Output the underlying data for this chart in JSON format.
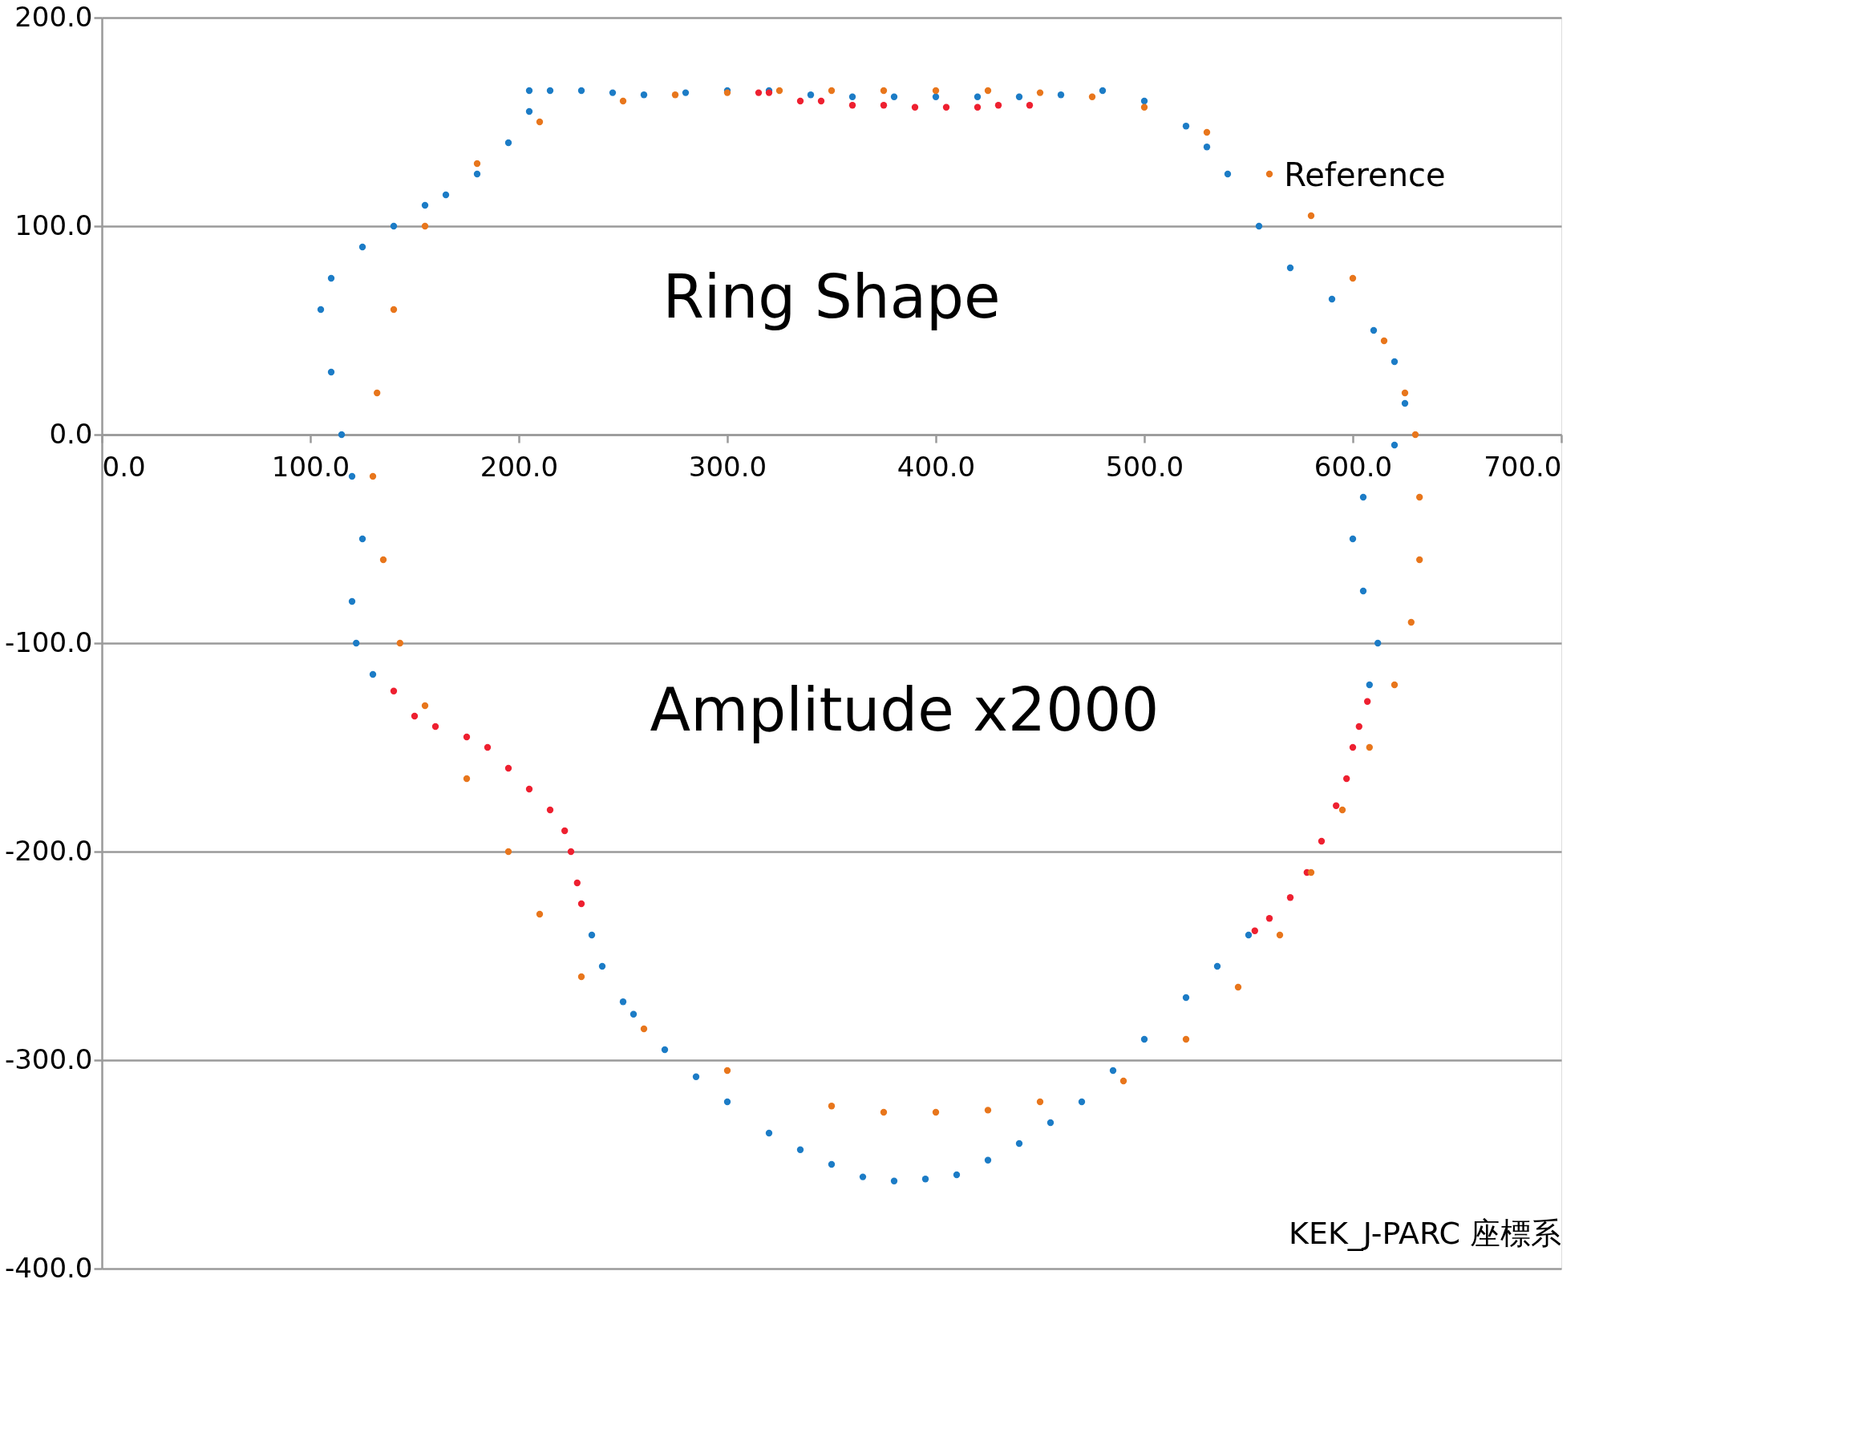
{
  "chart_data": {
    "type": "scatter",
    "series": [
      {
        "color": "#1c7cc6",
        "x": [
          205,
          215,
          230,
          245,
          260,
          280,
          300,
          320,
          340,
          360,
          380,
          400,
          420,
          440,
          460,
          480,
          500,
          520,
          530,
          540,
          555,
          570,
          590,
          610,
          620,
          625,
          620,
          605,
          600,
          605,
          612,
          608,
          550,
          535,
          520,
          500,
          485,
          470,
          455,
          440,
          425,
          410,
          395,
          380,
          365,
          350,
          335,
          320,
          300,
          285,
          270,
          255,
          250,
          240,
          235,
          130,
          122,
          120,
          125,
          120,
          115,
          110,
          105,
          110,
          125,
          140,
          155,
          165,
          180,
          195,
          205
        ],
        "values": [
          165,
          165,
          165,
          164,
          163,
          164,
          165,
          165,
          163,
          162,
          162,
          162,
          162,
          162,
          163,
          165,
          160,
          148,
          138,
          125,
          100,
          80,
          65,
          50,
          35,
          15,
          -5,
          -30,
          -50,
          -75,
          -100,
          -120,
          -240,
          -255,
          -270,
          -290,
          -305,
          -320,
          -330,
          -340,
          -348,
          -355,
          -357,
          -358,
          -356,
          -350,
          -343,
          -335,
          -320,
          -308,
          -295,
          -278,
          -272,
          -255,
          -240,
          -115,
          -100,
          -80,
          -50,
          -20,
          0,
          30,
          60,
          75,
          90,
          100,
          110,
          115,
          125,
          140,
          155
        ]
      },
      {
        "color": "#ee2030",
        "x": [
          315,
          320,
          335,
          345,
          360,
          375,
          390,
          405,
          420,
          430,
          445,
          140,
          150,
          160,
          175,
          185,
          195,
          205,
          215,
          222,
          225,
          228,
          230,
          607,
          603,
          600,
          597,
          592,
          585,
          578,
          570,
          560,
          553
        ],
        "values": [
          164,
          164,
          160,
          160,
          158,
          158,
          157,
          157,
          157,
          158,
          158,
          -123,
          -135,
          -140,
          -145,
          -150,
          -160,
          -170,
          -180,
          -190,
          -200,
          -215,
          -225,
          -128,
          -140,
          -150,
          -165,
          -178,
          -195,
          -210,
          -222,
          -232,
          -238
        ]
      },
      {
        "color": "#e8761c",
        "x": [
          250,
          275,
          300,
          325,
          350,
          375,
          400,
          425,
          450,
          475,
          500,
          530,
          560,
          580,
          600,
          615,
          625,
          630,
          632,
          632,
          628,
          620,
          608,
          595,
          580,
          565,
          545,
          520,
          490,
          450,
          425,
          400,
          375,
          350,
          300,
          260,
          230,
          210,
          195,
          175,
          155,
          143,
          135,
          130,
          132,
          140,
          155,
          180,
          210
        ],
        "values": [
          160,
          163,
          164,
          165,
          165,
          165,
          165,
          165,
          164,
          162,
          157,
          145,
          125,
          105,
          75,
          45,
          20,
          0,
          -30,
          -60,
          -90,
          -120,
          -150,
          -180,
          -210,
          -240,
          -265,
          -290,
          -310,
          -320,
          -324,
          -325,
          -325,
          -322,
          -305,
          -285,
          -260,
          -230,
          -200,
          -165,
          -130,
          -100,
          -60,
          -20,
          20,
          60,
          100,
          130,
          150
        ]
      }
    ],
    "xlim": [
      0,
      700
    ],
    "xticks": [
      {
        "value": 0,
        "label": "0.0"
      },
      {
        "value": 100,
        "label": "100.0"
      },
      {
        "value": 200,
        "label": "200.0"
      },
      {
        "value": 300,
        "label": "300.0"
      },
      {
        "value": 400,
        "label": "400.0"
      },
      {
        "value": 500,
        "label": "500.0"
      },
      {
        "value": 600,
        "label": "600.0"
      },
      {
        "value": 700,
        "label": "700.0"
      }
    ],
    "ylim": [
      -400,
      200
    ],
    "yticks": [
      {
        "value": -400,
        "label": "-400.0"
      },
      {
        "value": -300,
        "label": "-300.0"
      },
      {
        "value": -200,
        "label": "-200.0"
      },
      {
        "value": -100,
        "label": "-100.0"
      },
      {
        "value": 0,
        "label": "0.0"
      },
      {
        "value": 100,
        "label": "100.0"
      },
      {
        "value": 200,
        "label": "200.0"
      }
    ],
    "grid": "y",
    "marker": "circle",
    "annotations": [
      "Reference",
      "Ring Shape",
      "Amplitude x2000",
      "KEK_J-PARC 座標系"
    ]
  }
}
